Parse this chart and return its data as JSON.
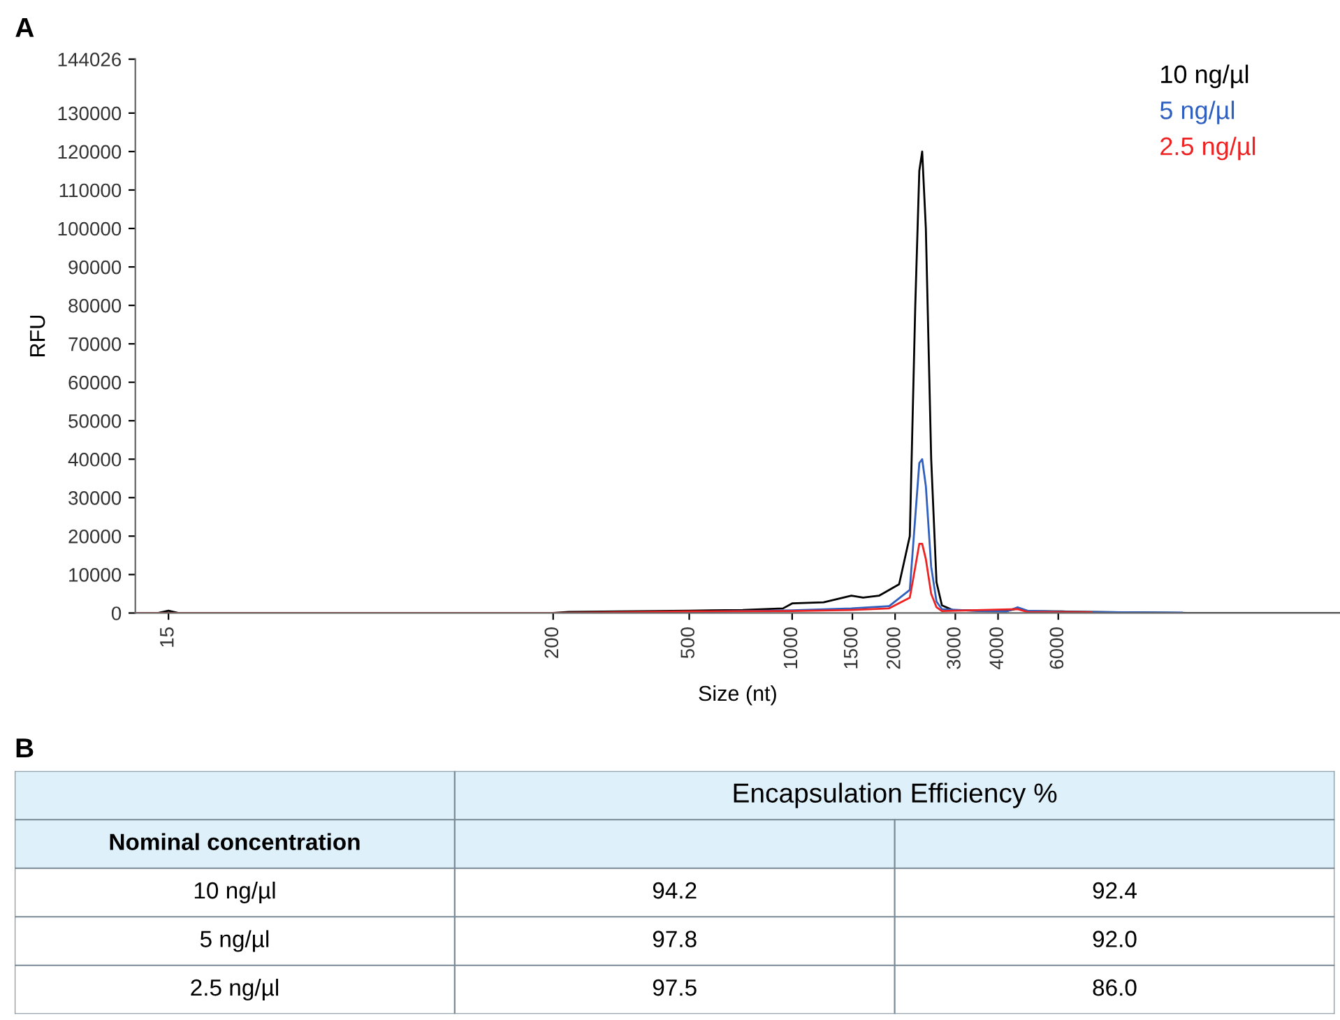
{
  "chart_data": [
    {
      "type": "line",
      "title": "A",
      "xlabel": "Size (nt)",
      "ylabel": "RFU",
      "log": "x",
      "xlim": [
        12,
        40000
      ],
      "ylim": [
        0,
        144026
      ],
      "xticks": [
        15,
        200,
        500,
        1000,
        1500,
        2000,
        3000,
        4000,
        6000
      ],
      "yticks": [
        0,
        10000,
        20000,
        30000,
        40000,
        50000,
        60000,
        70000,
        80000,
        90000,
        100000,
        110000,
        120000,
        130000,
        144026
      ],
      "legend": "top right",
      "grid": false,
      "line_style": "solid",
      "series": [
        {
          "name": "10 ng/µl",
          "color": "#000000",
          "x": [
            12,
            14,
            15,
            16,
            200,
            222,
            500,
            717,
            940,
            1000,
            1236,
            1490,
            1612,
            1794,
            1921,
            2055,
            2208,
            2291,
            2354,
            2400,
            2460,
            2550,
            2643,
            2741,
            2945,
            3526,
            4233,
            4563,
            4873,
            6170,
            9010,
            14440,
            40000
          ],
          "values": [
            0,
            0,
            600,
            0,
            0,
            300,
            600,
            800,
            1200,
            2500,
            2800,
            4500,
            4000,
            4500,
            6000,
            7500,
            20000,
            80000,
            115000,
            120000,
            100000,
            40000,
            8000,
            2000,
            800,
            600,
            500,
            1200,
            500,
            400,
            200,
            0,
            0
          ]
        },
        {
          "name": "5 ng/µl",
          "color": "#2f5fbf",
          "x": [
            500,
            1000,
            1490,
            1921,
            2208,
            2291,
            2354,
            2400,
            2460,
            2550,
            2643,
            2741,
            3526,
            4233,
            4563,
            4873,
            6170,
            13800
          ],
          "values": [
            300,
            700,
            1200,
            1800,
            6000,
            25000,
            39000,
            40000,
            33000,
            12000,
            3000,
            1000,
            500,
            400,
            1500,
            600,
            300,
            100
          ]
        },
        {
          "name": "2.5 ng/µl",
          "color": "#ee2222",
          "x": [
            12,
            200,
            500,
            1000,
            1490,
            1921,
            2208,
            2291,
            2354,
            2400,
            2460,
            2550,
            2643,
            2741,
            4563,
            4873,
            7500
          ],
          "values": [
            0,
            0,
            400,
            500,
            800,
            1200,
            4000,
            12000,
            18000,
            18000,
            14000,
            5000,
            1500,
            500,
            1000,
            300,
            200
          ]
        }
      ]
    },
    {
      "type": "other",
      "title": "B",
      "subtitle": "Encapsulation Efficiency %",
      "annotations": [
        "Nominal concentration"
      ],
      "categories": [
        "10 ng/µl",
        "5 ng/µl",
        "2.5 ng/µl"
      ],
      "data_labels": true,
      "series": [
        {
          "values": [
            94.2,
            97.8,
            97.5
          ]
        },
        {
          "values": [
            92.4,
            92.0,
            86.0
          ],
          "value_labels": [
            "92.4",
            "92.0",
            "86.0"
          ]
        }
      ]
    }
  ]
}
